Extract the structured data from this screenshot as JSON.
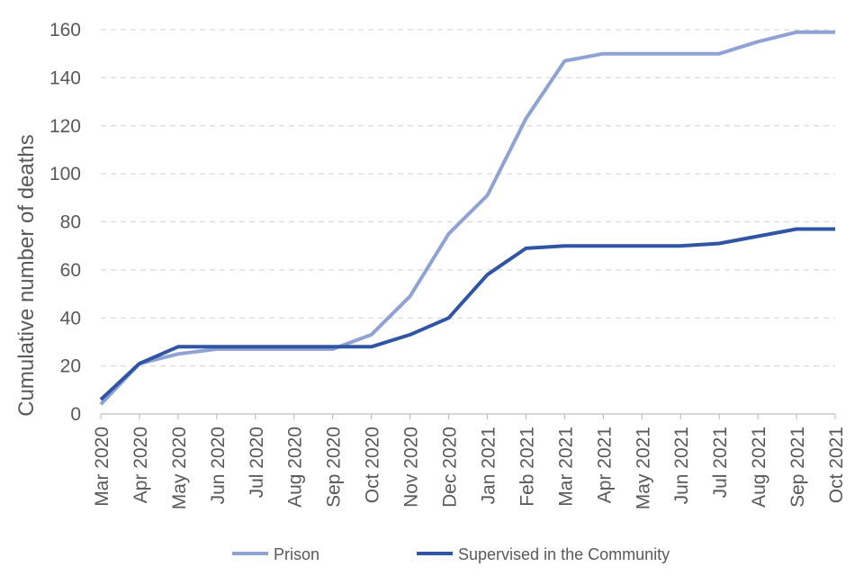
{
  "chart_data": {
    "type": "line",
    "title": "",
    "xlabel": "",
    "ylabel": "Cumulative number of deaths",
    "ylim": [
      0,
      160
    ],
    "ytick_step": 20,
    "grid": true,
    "legend_position": "bottom",
    "x": [
      "Mar 2020",
      "Apr 2020",
      "May 2020",
      "Jun 2020",
      "Jul 2020",
      "Aug 2020",
      "Sep 2020",
      "Oct 2020",
      "Nov 2020",
      "Dec 2020",
      "Jan 2021",
      "Feb 2021",
      "Mar 2021",
      "Apr 2021",
      "May 2021",
      "Jun 2021",
      "Jul 2021",
      "Aug 2021",
      "Sep 2021",
      "Oct 2021"
    ],
    "series": [
      {
        "name": "Prison",
        "color": "#8FA2D4",
        "values": [
          4,
          21,
          25,
          27,
          27,
          27,
          27,
          33,
          49,
          75,
          91,
          123,
          147,
          150,
          150,
          150,
          150,
          155,
          159,
          159
        ]
      },
      {
        "name": "Supervised in the Community",
        "color": "#2F55A4",
        "values": [
          6,
          21,
          28,
          28,
          28,
          28,
          28,
          28,
          33,
          40,
          58,
          69,
          70,
          70,
          70,
          70,
          71,
          74,
          77,
          77
        ]
      }
    ]
  }
}
